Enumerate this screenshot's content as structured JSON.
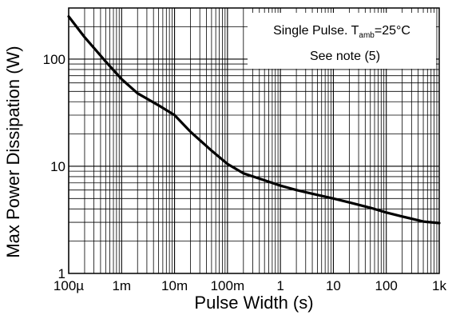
{
  "chart_data": {
    "type": "line",
    "xlabel": "Pulse Width (s)",
    "ylabel": "Max Power Dissipation (W)",
    "x_scale": "log",
    "y_scale": "log",
    "xlim": [
      0.0001,
      1000
    ],
    "ylim": [
      1,
      300
    ],
    "grid": true,
    "x_ticks": [
      {
        "value": 0.0001,
        "label": "100µ"
      },
      {
        "value": 0.001,
        "label": "1m"
      },
      {
        "value": 0.01,
        "label": "10m"
      },
      {
        "value": 0.1,
        "label": "100m"
      },
      {
        "value": 1,
        "label": "1"
      },
      {
        "value": 10,
        "label": "10"
      },
      {
        "value": 100,
        "label": "100"
      },
      {
        "value": 1000,
        "label": "1k"
      }
    ],
    "y_ticks": [
      {
        "value": 1,
        "label": "1"
      },
      {
        "value": 10,
        "label": "10"
      },
      {
        "value": 100,
        "label": "100"
      }
    ],
    "legend": {
      "placement": "top-right",
      "line1_main": "Single Pulse. T",
      "line1_sub": "amb",
      "line1_rest": "=25°C",
      "line2": "See note (5)"
    },
    "series": [
      {
        "x": [
          0.0001,
          0.0002,
          0.0005,
          0.001,
          0.002,
          0.005,
          0.01,
          0.02,
          0.05,
          0.1,
          0.2,
          0.5,
          1,
          2,
          5,
          10,
          20,
          50,
          100,
          200,
          500,
          1000
        ],
        "y": [
          250,
          160,
          95,
          65,
          48,
          37,
          30,
          21,
          14,
          10.5,
          8.6,
          7.4,
          6.6,
          6.0,
          5.4,
          5.0,
          4.6,
          4.1,
          3.7,
          3.4,
          3.05,
          2.95
        ]
      }
    ]
  }
}
